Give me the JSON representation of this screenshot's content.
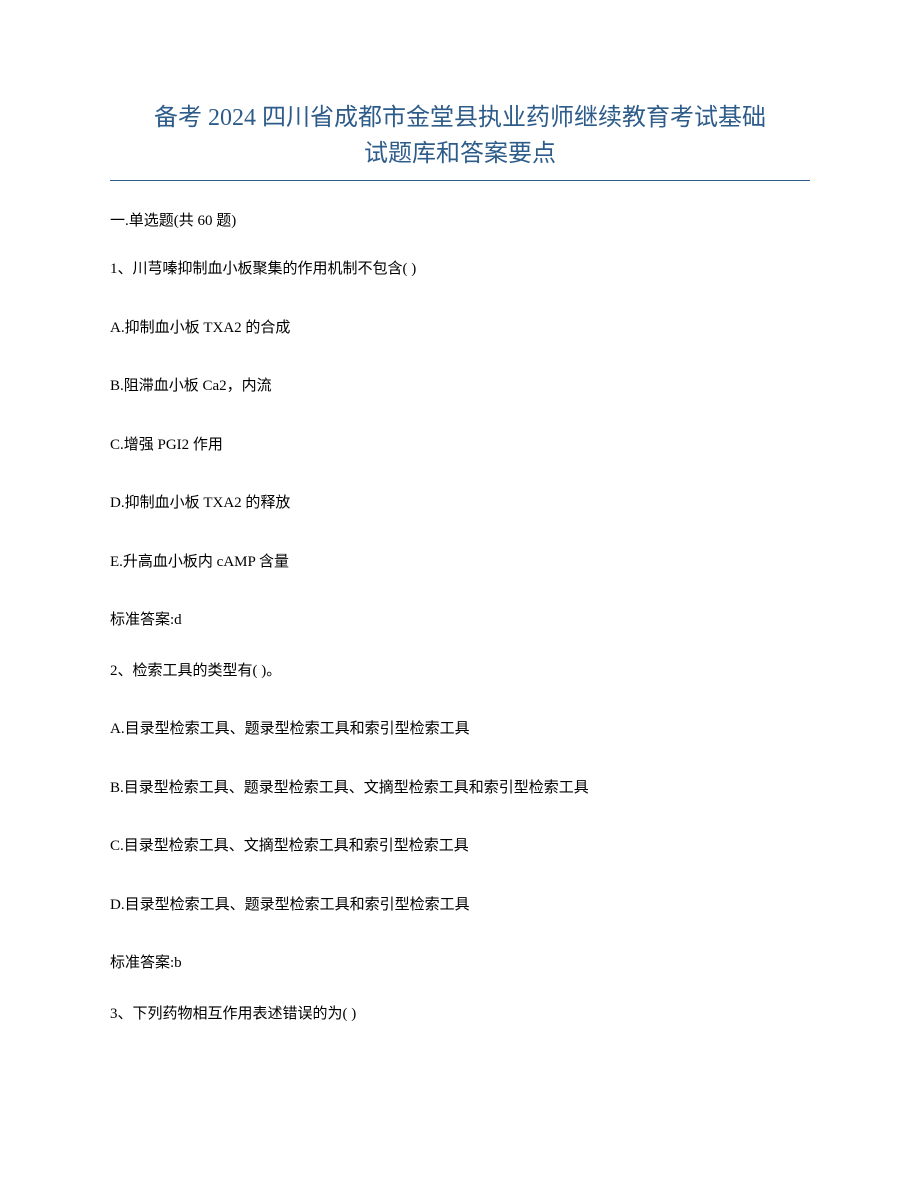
{
  "title": {
    "line1": "备考 2024 四川省成都市金堂县执业药师继续教育考试基础",
    "line2": "试题库和答案要点",
    "color": "#2e5c8a",
    "fontsize": 24
  },
  "divider_color": "#2e5c8a",
  "section_header": "一.单选题(共 60 题)",
  "questions": [
    {
      "number": "1",
      "text": "1、川芎嗪抑制血小板聚集的作用机制不包含( )",
      "options": [
        "A.抑制血小板 TXA2 的合成",
        "B.阻滞血小板 Ca2，内流",
        "C.增强 PGI2 作用",
        "D.抑制血小板 TXA2 的释放",
        "E.升高血小板内 cAMP 含量"
      ],
      "answer": "标准答案:d"
    },
    {
      "number": "2",
      "text": "2、检索工具的类型有( )。",
      "options": [
        "A.目录型检索工具、题录型检索工具和索引型检索工具",
        "B.目录型检索工具、题录型检索工具、文摘型检索工具和索引型检索工具",
        "C.目录型检索工具、文摘型检索工具和索引型检索工具",
        "D.目录型检索工具、题录型检索工具和索引型检索工具"
      ],
      "answer": "标准答案:b"
    },
    {
      "number": "3",
      "text": "3、下列药物相互作用表述错误的为( )",
      "options": [],
      "answer": ""
    }
  ],
  "text_color": "#000000",
  "background_color": "#ffffff",
  "body_fontsize": 15
}
